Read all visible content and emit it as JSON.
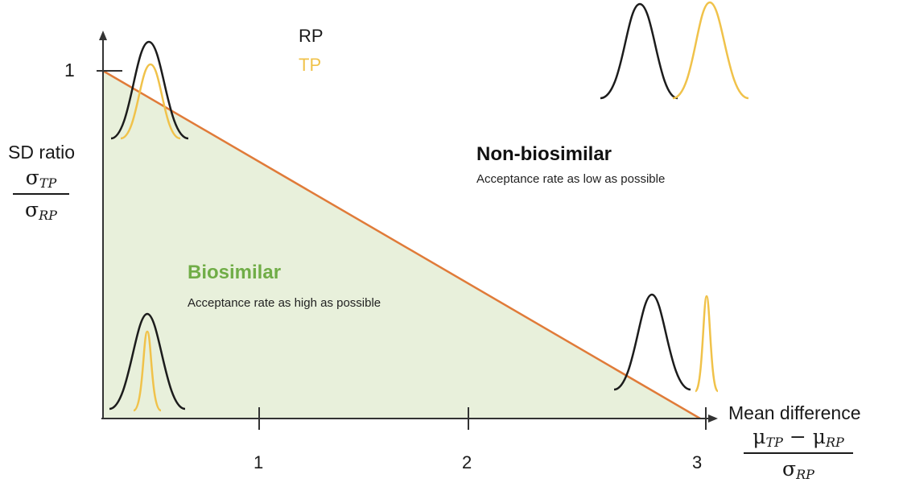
{
  "legend": {
    "reference": "RP",
    "test": "TP"
  },
  "colors": {
    "reference_curve": "#1c1c1c",
    "test_curve": "#f0c24a",
    "boundary": "#e07b39",
    "biosimilar_fill": "#e8f0db",
    "biosimilar_text": "#70ad47",
    "axis": "#333333"
  },
  "y_axis": {
    "label": "SD ratio",
    "numerator": "σ",
    "numerator_sub": "TP",
    "denominator": "σ",
    "denominator_sub": "RP",
    "tick_label": "1"
  },
  "x_axis": {
    "label": "Mean difference",
    "numerator_a": "μ",
    "numerator_a_sub": "TP",
    "operator": "−",
    "numerator_b": "μ",
    "numerator_b_sub": "RP",
    "denominator": "σ",
    "denominator_sub": "RP",
    "ticks": [
      "1",
      "2",
      "3"
    ]
  },
  "regions": {
    "non_biosimilar": {
      "title": "Non-biosimilar",
      "subtitle": "Acceptance rate as low as possible"
    },
    "biosimilar": {
      "title": "Biosimilar",
      "subtitle": "Acceptance rate as high as possible"
    }
  }
}
